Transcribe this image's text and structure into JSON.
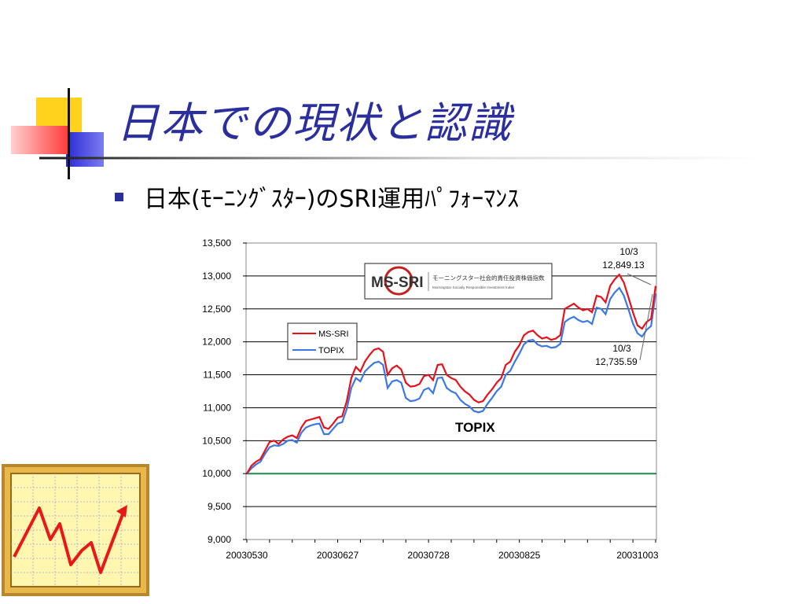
{
  "slide": {
    "title": "日本での現状と認識",
    "bullet": "日本(ﾓｰﾆﾝｸﾞｽﾀｰ)のSRI運用ﾊﾟﾌｫｰﾏﾝｽ",
    "colors": {
      "title": "#2b2f9e",
      "bullet": "#2b2f9e",
      "deco_yellow": "#ffd21e",
      "deco_red": "#ff4a4a",
      "deco_blue": "#3a3adf"
    },
    "icons": [
      "chart-thumbnail-icon"
    ]
  },
  "chart_data": {
    "type": "line",
    "xlabel": "",
    "ylabel": "",
    "ylim": [
      9000,
      13500
    ],
    "yticks": [
      "13,500",
      "13,000",
      "12,500",
      "12,000",
      "11,500",
      "11,000",
      "10,500",
      "10,000",
      "9,500",
      "9,000"
    ],
    "ytick_values": [
      13500,
      13000,
      12500,
      12000,
      11500,
      11000,
      10500,
      10000,
      9500,
      9000
    ],
    "xticks": [
      "20030530",
      "20030627",
      "20030728",
      "20030825",
      "20031003"
    ],
    "xtick_index": [
      0,
      20,
      40,
      60,
      86
    ],
    "grid": "horizontal",
    "legend": {
      "placement": "top-left",
      "entries": [
        "MS-SRI",
        "TOPIX"
      ]
    },
    "logo": {
      "text": "MS-SRI",
      "subtitle": "モーニングスター社会的責任投資株価指数",
      "subtitle_en": "Morningstar Socially Responsible Investment Index"
    },
    "annotations": {
      "series_label": "TOPIX",
      "sri_end_date": "10/3",
      "sri_end_value": "12,849.13",
      "topix_end_date": "10/3",
      "topix_end_value": "12,735.59"
    },
    "baseline": {
      "value": 10000,
      "color": "#1e8a4a"
    },
    "series": [
      {
        "name": "MS-SRI",
        "color": "#e8101a",
        "values": [
          10000,
          10120,
          10180,
          10220,
          10350,
          10480,
          10500,
          10450,
          10520,
          10560,
          10580,
          10540,
          10700,
          10800,
          10820,
          10840,
          10860,
          10700,
          10680,
          10760,
          10850,
          10870,
          11100,
          11450,
          11620,
          11550,
          11700,
          11800,
          11880,
          11900,
          11850,
          11500,
          11600,
          11640,
          11580,
          11380,
          11320,
          11330,
          11360,
          11480,
          11500,
          11420,
          11650,
          11660,
          11500,
          11450,
          11420,
          11320,
          11250,
          11200,
          11120,
          11080,
          11100,
          11200,
          11280,
          11380,
          11450,
          11650,
          11700,
          11850,
          11950,
          12100,
          12150,
          12170,
          12100,
          12050,
          12070,
          12030,
          12050,
          12100,
          12500,
          12540,
          12580,
          12520,
          12480,
          12500,
          12450,
          12700,
          12680,
          12600,
          12850,
          12950,
          13020,
          12900,
          12680,
          12450,
          12250,
          12200,
          12300,
          12350,
          12849
        ]
      },
      {
        "name": "TOPIX",
        "color": "#3a78e8",
        "values": [
          10000,
          10080,
          10140,
          10180,
          10300,
          10400,
          10430,
          10420,
          10450,
          10500,
          10510,
          10470,
          10620,
          10700,
          10730,
          10750,
          10760,
          10600,
          10600,
          10680,
          10760,
          10780,
          10980,
          11300,
          11450,
          11400,
          11550,
          11620,
          11680,
          11700,
          11650,
          11300,
          11400,
          11420,
          11380,
          11150,
          11100,
          11110,
          11140,
          11270,
          11300,
          11220,
          11450,
          11460,
          11300,
          11250,
          11220,
          11120,
          11060,
          11020,
          10950,
          10930,
          10950,
          11060,
          11150,
          11250,
          11320,
          11500,
          11560,
          11700,
          11820,
          11960,
          12020,
          12030,
          11960,
          11930,
          11940,
          11910,
          11920,
          11970,
          12300,
          12350,
          12380,
          12330,
          12300,
          12320,
          12270,
          12520,
          12500,
          12420,
          12650,
          12750,
          12820,
          12700,
          12500,
          12280,
          12130,
          12080,
          12180,
          12240,
          12736
        ]
      }
    ]
  }
}
